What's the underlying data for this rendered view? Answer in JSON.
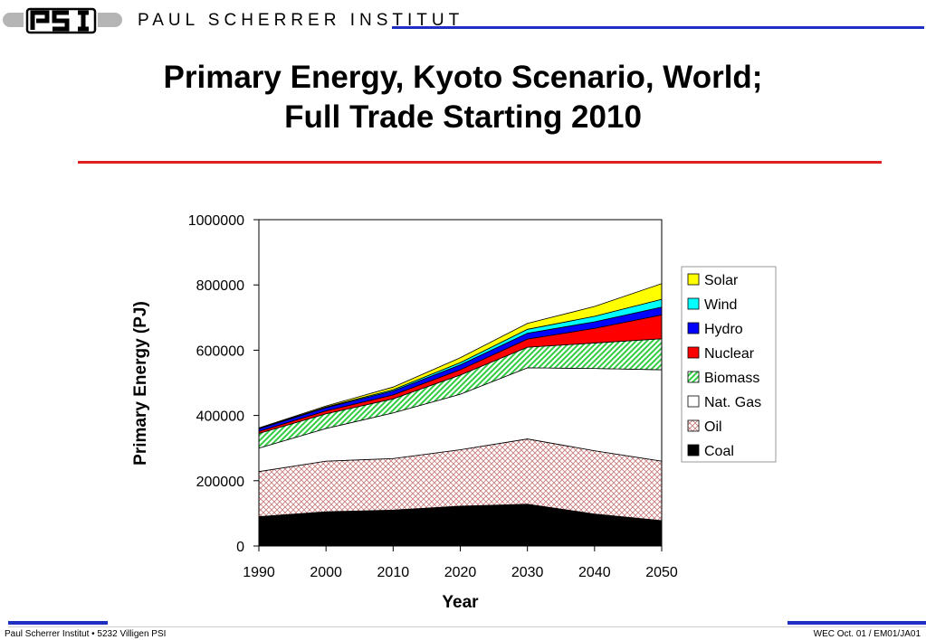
{
  "header": {
    "logo_text": "PSI",
    "institute": "PAUL SCHERRER INSTITUT"
  },
  "slide": {
    "title_line1": "Primary Energy, Kyoto Scenario, World;",
    "title_line2": "Full Trade Starting 2010"
  },
  "footer": {
    "left": "Paul Scherrer Institut • 5232 Villigen PSI",
    "right": "WEC Oct. 01 / EM01/JA01"
  },
  "colors": {
    "header_rule": "#1f2fc4",
    "title_rule": "#e02020"
  },
  "chart_data": {
    "type": "area",
    "stacked": true,
    "title": "",
    "xlabel": "Year",
    "ylabel": "Primary Energy (PJ)",
    "x": [
      1990,
      2000,
      2010,
      2020,
      2030,
      2040,
      2050
    ],
    "ylim": [
      0,
      1000000
    ],
    "yticks": [
      0,
      200000,
      400000,
      600000,
      800000,
      1000000
    ],
    "grid": false,
    "legend_position": "right",
    "series": [
      {
        "name": "Coal",
        "color": "#000000",
        "pattern": "solid",
        "values": [
          90000,
          105000,
          110000,
          122000,
          128000,
          98000,
          78000
        ]
      },
      {
        "name": "Oil",
        "color": "#c87878",
        "pattern": "crosshatch",
        "values": [
          138000,
          155000,
          158000,
          173000,
          200000,
          194000,
          182000
        ]
      },
      {
        "name": "Nat. Gas",
        "color": "#ffffff",
        "pattern": "solid",
        "values": [
          72000,
          100000,
          140000,
          170000,
          218000,
          252000,
          280000
        ]
      },
      {
        "name": "Biomass",
        "color": "#2ecc40",
        "pattern": "diagonal",
        "values": [
          45000,
          45000,
          43000,
          59000,
          63000,
          78000,
          95000
        ]
      },
      {
        "name": "Nuclear",
        "color": "#ff0000",
        "pattern": "solid",
        "values": [
          6000,
          9000,
          12000,
          16000,
          25000,
          45000,
          73000
        ]
      },
      {
        "name": "Hydro",
        "color": "#0000ff",
        "pattern": "solid",
        "values": [
          8000,
          10000,
          12000,
          15000,
          18000,
          20000,
          24000
        ]
      },
      {
        "name": "Wind",
        "color": "#00ffff",
        "pattern": "solid",
        "values": [
          1000,
          2000,
          4000,
          7000,
          12000,
          17000,
          24000
        ]
      },
      {
        "name": "Solar",
        "color": "#ffff00",
        "pattern": "solid",
        "values": [
          2000,
          3000,
          8000,
          15000,
          18000,
          30000,
          48000
        ]
      }
    ]
  }
}
